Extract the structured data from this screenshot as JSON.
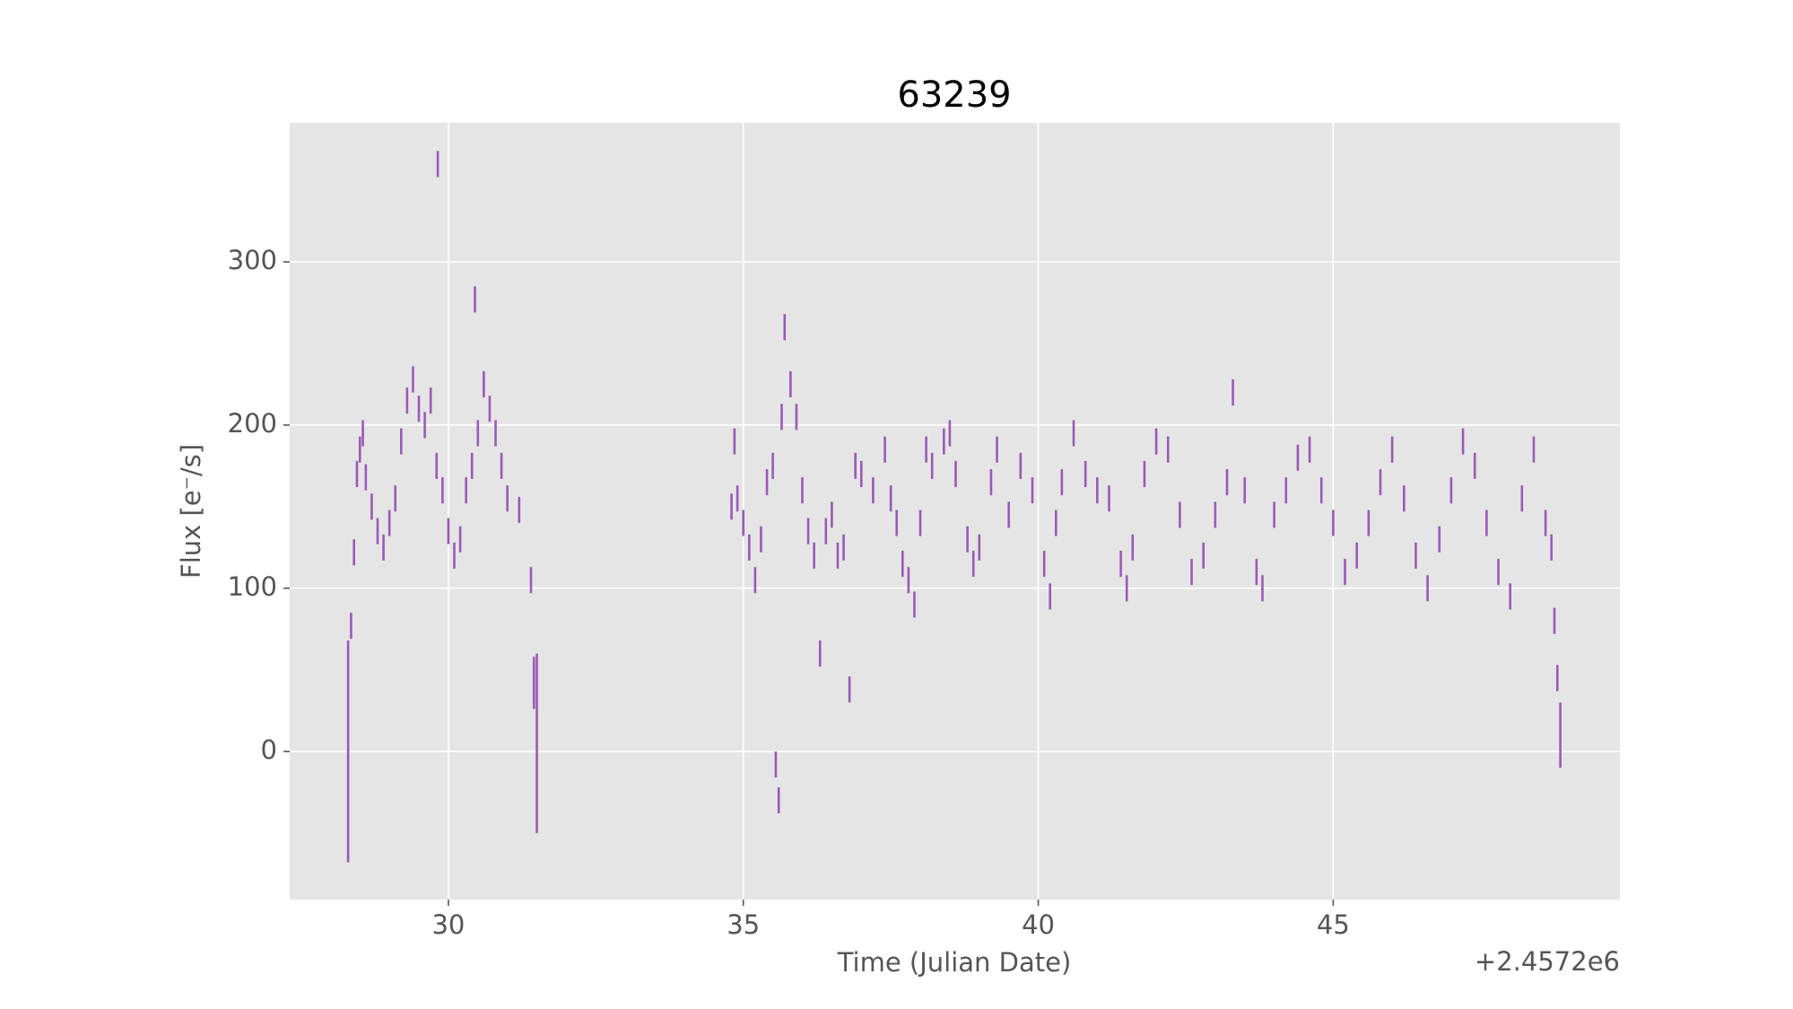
{
  "chart_data": {
    "type": "errorbar",
    "title": "63239",
    "x_label": "Time (Julian Date)",
    "y_label": "Flux [e⁻/s]",
    "x_offset_text": "+2.4572e6",
    "color": "#9b59b6",
    "grid": true,
    "xlim": [
      27.31,
      49.86
    ],
    "ylim": [
      -90.8,
      385.2
    ],
    "xticks": [
      30,
      35,
      40,
      45
    ],
    "yticks": [
      0,
      100,
      200,
      300
    ],
    "x": [
      28.3,
      28.35,
      28.4,
      28.45,
      28.5,
      28.55,
      28.6,
      28.7,
      28.8,
      28.9,
      29.0,
      29.1,
      29.2,
      29.3,
      29.4,
      29.5,
      29.6,
      29.7,
      29.8,
      29.82,
      29.9,
      30.0,
      30.1,
      30.2,
      30.3,
      30.4,
      30.45,
      30.5,
      30.6,
      30.7,
      30.8,
      30.9,
      31.0,
      31.2,
      31.4,
      31.45,
      31.5,
      34.8,
      34.85,
      34.9,
      35.0,
      35.1,
      35.2,
      35.3,
      35.4,
      35.5,
      35.55,
      35.6,
      35.65,
      35.7,
      35.8,
      35.9,
      36.0,
      36.1,
      36.2,
      36.3,
      36.4,
      36.5,
      36.6,
      36.7,
      36.8,
      36.9,
      37.0,
      37.2,
      37.4,
      37.5,
      37.6,
      37.7,
      37.8,
      37.9,
      38.0,
      38.1,
      38.2,
      38.4,
      38.5,
      38.6,
      38.8,
      38.9,
      39.0,
      39.2,
      39.3,
      39.5,
      39.7,
      39.9,
      40.1,
      40.2,
      40.3,
      40.4,
      40.6,
      40.8,
      41.0,
      41.2,
      41.4,
      41.5,
      41.6,
      41.8,
      42.0,
      42.2,
      42.4,
      42.6,
      42.8,
      43.0,
      43.2,
      43.3,
      43.5,
      43.7,
      43.8,
      44.0,
      44.2,
      44.4,
      44.6,
      44.8,
      45.0,
      45.2,
      45.4,
      45.6,
      45.8,
      46.0,
      46.2,
      46.4,
      46.6,
      46.8,
      47.0,
      47.2,
      47.4,
      47.6,
      47.8,
      48.0,
      48.2,
      48.4,
      48.6,
      48.7,
      48.75,
      48.8,
      48.85
    ],
    "values": [
      0,
      77,
      122,
      170,
      185,
      195,
      168,
      150,
      135,
      125,
      140,
      155,
      190,
      215,
      228,
      210,
      200,
      215,
      175,
      360,
      160,
      135,
      120,
      130,
      160,
      175,
      277,
      195,
      225,
      210,
      195,
      175,
      155,
      148,
      105,
      42,
      5,
      150,
      190,
      155,
      140,
      125,
      105,
      130,
      165,
      175,
      -8,
      -30,
      205,
      260,
      225,
      205,
      160,
      135,
      120,
      60,
      135,
      145,
      120,
      125,
      38,
      175,
      170,
      160,
      185,
      155,
      140,
      115,
      105,
      90,
      140,
      185,
      175,
      190,
      195,
      170,
      130,
      115,
      125,
      165,
      185,
      145,
      175,
      160,
      115,
      95,
      140,
      165,
      195,
      170,
      160,
      155,
      115,
      100,
      125,
      170,
      190,
      185,
      145,
      110,
      120,
      145,
      165,
      220,
      160,
      110,
      100,
      145,
      160,
      180,
      185,
      160,
      140,
      110,
      120,
      140,
      165,
      185,
      155,
      120,
      100,
      130,
      160,
      190,
      175,
      140,
      110,
      95,
      155,
      185,
      140,
      125,
      80,
      45,
      10
    ],
    "errors": [
      68,
      8,
      8,
      8,
      8,
      8,
      8,
      8,
      8,
      8,
      8,
      8,
      8,
      8,
      8,
      8,
      8,
      8,
      8,
      8,
      8,
      8,
      8,
      8,
      8,
      8,
      8,
      8,
      8,
      8,
      8,
      8,
      8,
      8,
      8,
      16,
      55,
      8,
      8,
      8,
      8,
      8,
      8,
      8,
      8,
      8,
      8,
      8,
      8,
      8,
      8,
      8,
      8,
      8,
      8,
      8,
      8,
      8,
      8,
      8,
      8,
      8,
      8,
      8,
      8,
      8,
      8,
      8,
      8,
      8,
      8,
      8,
      8,
      8,
      8,
      8,
      8,
      8,
      8,
      8,
      8,
      8,
      8,
      8,
      8,
      8,
      8,
      8,
      8,
      8,
      8,
      8,
      8,
      8,
      8,
      8,
      8,
      8,
      8,
      8,
      8,
      8,
      8,
      8,
      8,
      8,
      8,
      8,
      8,
      8,
      8,
      8,
      8,
      8,
      8,
      8,
      8,
      8,
      8,
      8,
      8,
      8,
      8,
      8,
      8,
      8,
      8,
      8,
      8,
      8,
      8,
      8,
      8,
      8,
      20
    ]
  }
}
